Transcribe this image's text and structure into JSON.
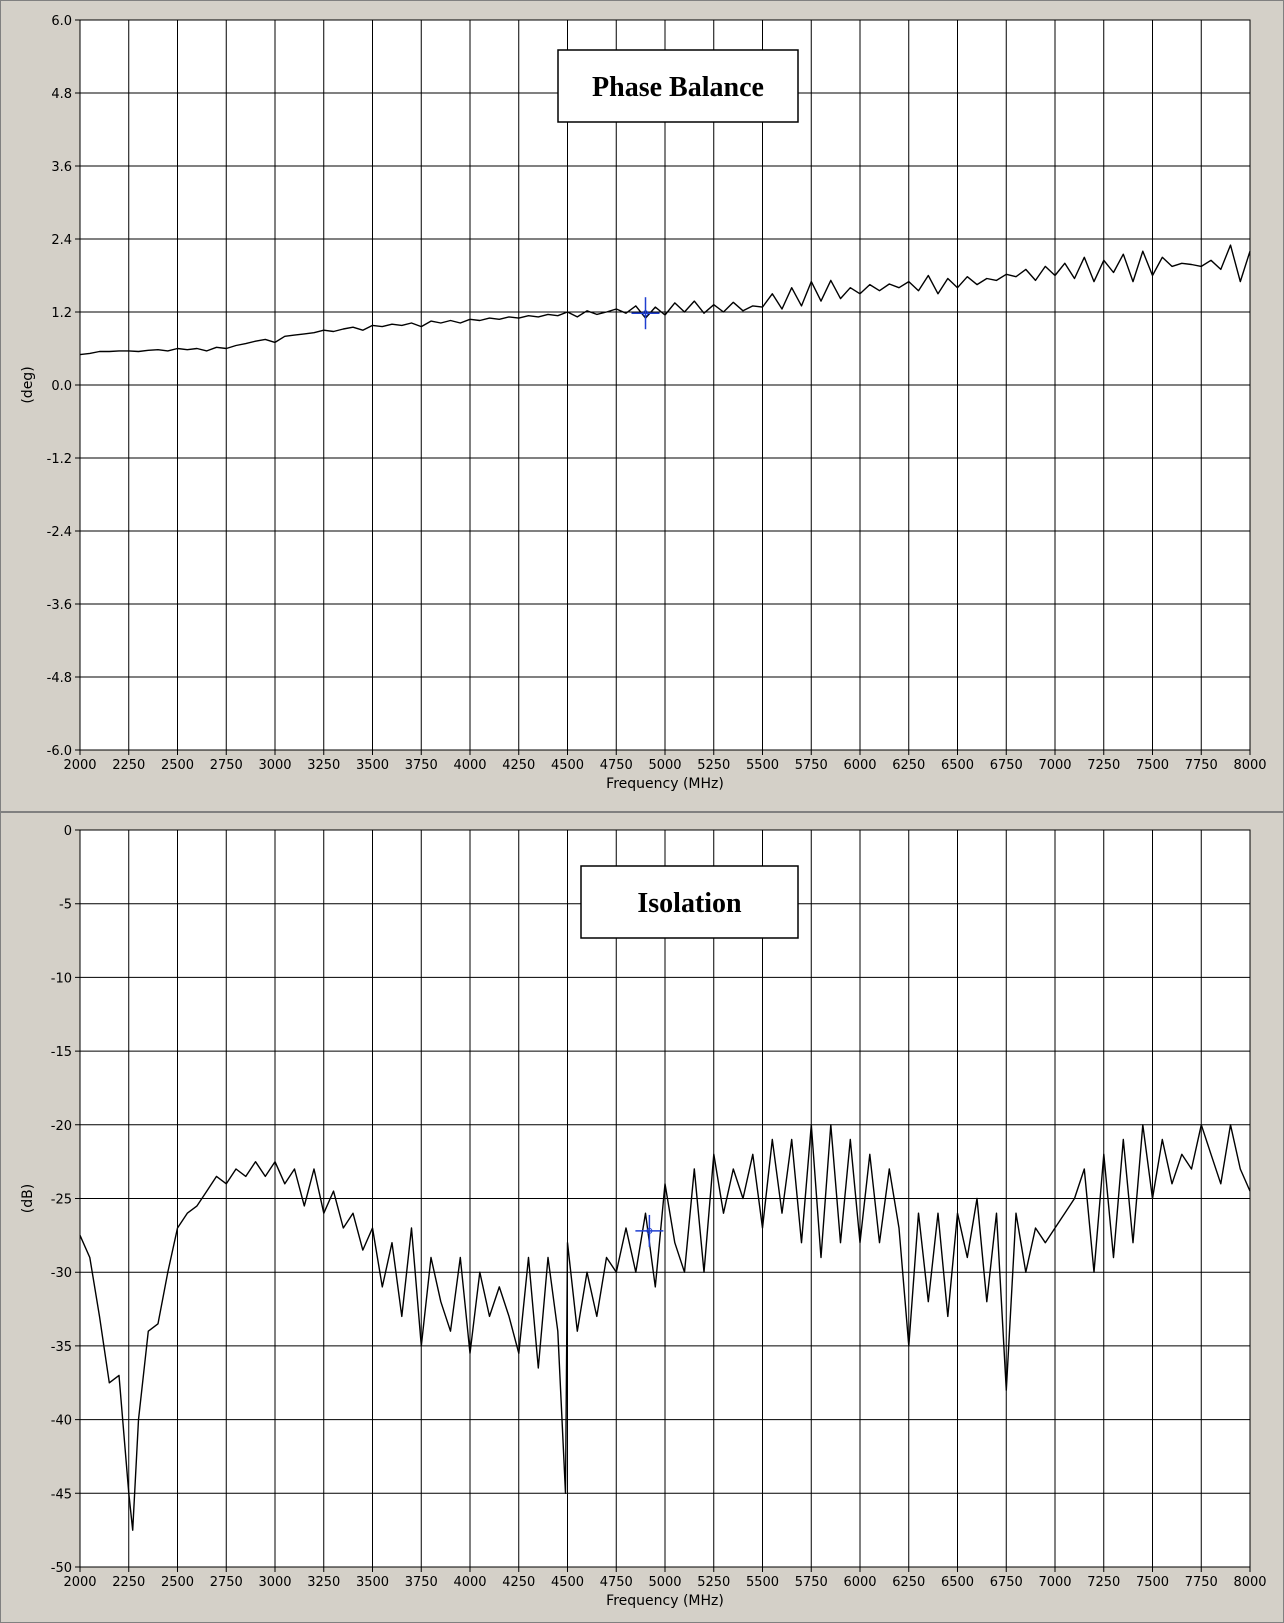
{
  "chart_data": [
    {
      "type": "line",
      "title": "Phase Balance",
      "xlabel": "Frequency (MHz)",
      "ylabel": "(deg)",
      "xlim": [
        2000,
        8000
      ],
      "ylim": [
        -6.0,
        6.0
      ],
      "x_ticks": [
        "2000",
        "2250",
        "2500",
        "2750",
        "3000",
        "3250",
        "3500",
        "3750",
        "4000",
        "4250",
        "4500",
        "4750",
        "5000",
        "5250",
        "5500",
        "5750",
        "6000",
        "6250",
        "6500",
        "6750",
        "7000",
        "7250",
        "7500",
        "7750",
        "8000"
      ],
      "y_ticks": [
        "6.0",
        "4.8",
        "3.6",
        "2.4",
        "1.2",
        "0.0",
        "-1.2",
        "-2.4",
        "-3.6",
        "-4.8",
        "-6.0"
      ],
      "grid": true,
      "marker": {
        "x": 4900,
        "y": 1.18
      },
      "line_color": "#000000",
      "marker_color": "#1f3fd0",
      "series": [
        {
          "x": [
            2000,
            2050,
            2100,
            2150,
            2200,
            2250,
            2300,
            2350,
            2400,
            2450,
            2500,
            2550,
            2600,
            2650,
            2700,
            2750,
            2800,
            2850,
            2900,
            2950,
            3000,
            3050,
            3100,
            3150,
            3200,
            3250,
            3300,
            3350,
            3400,
            3450,
            3500,
            3550,
            3600,
            3650,
            3700,
            3750,
            3800,
            3850,
            3900,
            3950,
            4000,
            4050,
            4100,
            4150,
            4200,
            4250,
            4300,
            4350,
            4400,
            4450,
            4500,
            4550,
            4600,
            4650,
            4700,
            4750,
            4800,
            4850,
            4900,
            4950,
            5000,
            5050,
            5100,
            5150,
            5200,
            5250,
            5300,
            5350,
            5400,
            5450,
            5500,
            5550,
            5600,
            5650,
            5700,
            5750,
            5800,
            5850,
            5900,
            5950,
            6000,
            6050,
            6100,
            6150,
            6200,
            6250,
            6300,
            6350,
            6400,
            6450,
            6500,
            6550,
            6600,
            6650,
            6700,
            6750,
            6800,
            6850,
            6900,
            6950,
            7000,
            7050,
            7100,
            7150,
            7200,
            7250,
            7300,
            7350,
            7400,
            7450,
            7500,
            7550,
            7600,
            7650,
            7700,
            7750,
            7800,
            7850,
            7900,
            7950,
            8000
          ],
          "y": [
            0.5,
            0.52,
            0.55,
            0.55,
            0.56,
            0.56,
            0.55,
            0.57,
            0.58,
            0.56,
            0.6,
            0.58,
            0.6,
            0.56,
            0.62,
            0.6,
            0.65,
            0.68,
            0.72,
            0.75,
            0.7,
            0.8,
            0.82,
            0.84,
            0.86,
            0.9,
            0.88,
            0.92,
            0.95,
            0.9,
            0.98,
            0.96,
            1.0,
            0.98,
            1.02,
            0.96,
            1.05,
            1.02,
            1.06,
            1.02,
            1.08,
            1.06,
            1.1,
            1.08,
            1.12,
            1.1,
            1.14,
            1.12,
            1.16,
            1.14,
            1.2,
            1.12,
            1.22,
            1.16,
            1.2,
            1.25,
            1.18,
            1.3,
            1.1,
            1.28,
            1.15,
            1.35,
            1.2,
            1.38,
            1.18,
            1.32,
            1.2,
            1.36,
            1.22,
            1.3,
            1.28,
            1.5,
            1.25,
            1.6,
            1.3,
            1.7,
            1.38,
            1.72,
            1.42,
            1.6,
            1.5,
            1.65,
            1.55,
            1.66,
            1.6,
            1.7,
            1.55,
            1.8,
            1.5,
            1.75,
            1.6,
            1.78,
            1.65,
            1.75,
            1.72,
            1.82,
            1.78,
            1.9,
            1.72,
            1.95,
            1.8,
            2.0,
            1.75,
            2.1,
            1.7,
            2.05,
            1.85,
            2.15,
            1.7,
            2.2,
            1.8,
            2.1,
            1.95,
            2.0,
            1.98,
            1.95,
            2.05,
            1.9,
            2.3,
            1.7,
            2.2
          ]
        }
      ]
    },
    {
      "type": "line",
      "title": "Isolation",
      "xlabel": "Frequency (MHz)",
      "ylabel": "(dB)",
      "xlim": [
        2000,
        8000
      ],
      "ylim": [
        -50,
        0
      ],
      "x_ticks": [
        "2000",
        "2250",
        "2500",
        "2750",
        "3000",
        "3250",
        "3500",
        "3750",
        "4000",
        "4250",
        "4500",
        "4750",
        "5000",
        "5250",
        "5500",
        "5750",
        "6000",
        "6250",
        "6500",
        "6750",
        "7000",
        "7250",
        "7500",
        "7750",
        "8000"
      ],
      "y_ticks": [
        "0",
        "-5",
        "-10",
        "-15",
        "-20",
        "-25",
        "-30",
        "-35",
        "-40",
        "-45",
        "-50"
      ],
      "grid": true,
      "marker": {
        "x": 4920,
        "y": -27.2
      },
      "line_color": "#000000",
      "marker_color": "#1f3fd0",
      "series": [
        {
          "x": [
            2000,
            2050,
            2100,
            2150,
            2200,
            2250,
            2270,
            2300,
            2350,
            2400,
            2450,
            2500,
            2550,
            2600,
            2650,
            2700,
            2750,
            2800,
            2850,
            2900,
            2950,
            3000,
            3050,
            3100,
            3150,
            3200,
            3250,
            3300,
            3350,
            3400,
            3450,
            3500,
            3550,
            3600,
            3650,
            3700,
            3750,
            3800,
            3850,
            3900,
            3950,
            4000,
            4050,
            4100,
            4150,
            4200,
            4250,
            4300,
            4350,
            4400,
            4450,
            4490,
            4500,
            4550,
            4600,
            4650,
            4700,
            4750,
            4800,
            4850,
            4900,
            4950,
            5000,
            5050,
            5100,
            5150,
            5200,
            5250,
            5300,
            5350,
            5400,
            5450,
            5500,
            5550,
            5600,
            5650,
            5700,
            5750,
            5800,
            5850,
            5900,
            5950,
            6000,
            6050,
            6100,
            6150,
            6200,
            6250,
            6300,
            6350,
            6400,
            6450,
            6500,
            6550,
            6600,
            6650,
            6700,
            6750,
            6800,
            6850,
            6900,
            6950,
            7000,
            7050,
            7100,
            7150,
            7200,
            7250,
            7300,
            7350,
            7400,
            7450,
            7500,
            7550,
            7600,
            7650,
            7700,
            7750,
            7800,
            7850,
            7900,
            7950,
            8000
          ],
          "y": [
            -27.5,
            -29,
            -33,
            -37.5,
            -37,
            -45,
            -47.5,
            -40,
            -34,
            -33.5,
            -30,
            -27,
            -26,
            -25.5,
            -24.5,
            -23.5,
            -24,
            -23,
            -23.5,
            -22.5,
            -23.5,
            -22.5,
            -24,
            -23,
            -25.5,
            -23,
            -26,
            -24.5,
            -27,
            -26,
            -28.5,
            -27,
            -31,
            -28,
            -33,
            -27,
            -35,
            -29,
            -32,
            -34,
            -29,
            -35.5,
            -30,
            -33,
            -31,
            -33,
            -35.5,
            -29,
            -36.5,
            -29,
            -34,
            -45,
            -28,
            -34,
            -30,
            -33,
            -29,
            -30,
            -27,
            -30,
            -26,
            -31,
            -24,
            -28,
            -30,
            -23,
            -30,
            -22,
            -26,
            -23,
            -25,
            -22,
            -27,
            -21,
            -26,
            -21,
            -28,
            -20,
            -29,
            -20,
            -28,
            -21,
            -28,
            -22,
            -28,
            -23,
            -27,
            -35,
            -26,
            -32,
            -26,
            -33,
            -26,
            -29,
            -25,
            -32,
            -26,
            -38,
            -26,
            -30,
            -27,
            -28,
            -27,
            -26,
            -25,
            -23,
            -30,
            -22,
            -29,
            -21,
            -28,
            -20,
            -25,
            -21,
            -24,
            -22,
            -23,
            -20,
            -22,
            -24,
            -20,
            -23,
            -24.5
          ]
        }
      ]
    }
  ]
}
